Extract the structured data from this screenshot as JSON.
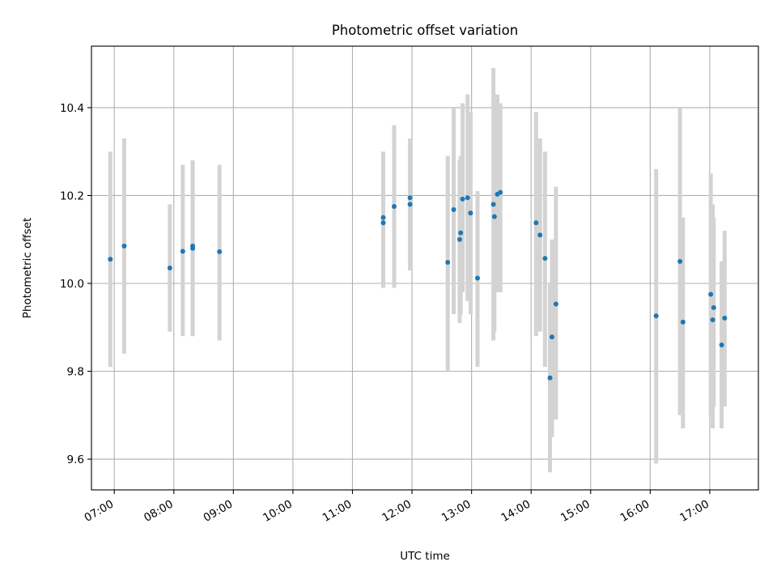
{
  "chart_data": {
    "type": "scatter",
    "title": "Photometric offset variation",
    "xlabel": "UTC time",
    "ylabel": "Photometric offset",
    "x_unit": "UTC time of day",
    "xlim": [
      "06:37",
      "17:49"
    ],
    "ylim": [
      9.53,
      10.54
    ],
    "x_ticks": [
      "07:00",
      "08:00",
      "09:00",
      "10:00",
      "11:00",
      "12:00",
      "13:00",
      "14:00",
      "15:00",
      "16:00",
      "17:00"
    ],
    "y_ticks": [
      "9.6",
      "9.8",
      "10.0",
      "10.2",
      "10.4"
    ],
    "grid": true,
    "colors": {
      "marker": "#1f77b4",
      "errorbar": "#d3d3d3",
      "grid": "#b0b0b0"
    },
    "points": [
      {
        "x": "06:56",
        "y": 10.055,
        "ylow": 9.81,
        "yhigh": 10.3
      },
      {
        "x": "07:10",
        "y": 10.085,
        "ylow": 9.84,
        "yhigh": 10.33
      },
      {
        "x": "07:56",
        "y": 10.035,
        "ylow": 9.89,
        "yhigh": 10.18
      },
      {
        "x": "08:09",
        "y": 10.073,
        "ylow": 9.88,
        "yhigh": 10.27
      },
      {
        "x": "08:19",
        "y": 10.08,
        "ylow": 9.88,
        "yhigh": 10.28
      },
      {
        "x": "08:19",
        "y": 10.085,
        "ylow": 9.88,
        "yhigh": 10.28
      },
      {
        "x": "08:46",
        "y": 10.072,
        "ylow": 9.87,
        "yhigh": 10.27
      },
      {
        "x": "11:31",
        "y": 10.15,
        "ylow": 9.99,
        "yhigh": 10.3
      },
      {
        "x": "11:31",
        "y": 10.138,
        "ylow": 9.99,
        "yhigh": 10.29
      },
      {
        "x": "11:42",
        "y": 10.175,
        "ylow": 9.99,
        "yhigh": 10.36
      },
      {
        "x": "11:58",
        "y": 10.195,
        "ylow": 10.03,
        "yhigh": 10.33
      },
      {
        "x": "11:58",
        "y": 10.18,
        "ylow": 10.03,
        "yhigh": 10.33
      },
      {
        "x": "12:36",
        "y": 10.048,
        "ylow": 9.8,
        "yhigh": 10.29
      },
      {
        "x": "12:42",
        "y": 10.168,
        "ylow": 9.93,
        "yhigh": 10.4
      },
      {
        "x": "12:48",
        "y": 10.1,
        "ylow": 9.91,
        "yhigh": 10.28
      },
      {
        "x": "12:49",
        "y": 10.115,
        "ylow": 9.93,
        "yhigh": 10.29
      },
      {
        "x": "12:51",
        "y": 10.192,
        "ylow": 9.98,
        "yhigh": 10.41
      },
      {
        "x": "12:56",
        "y": 10.195,
        "ylow": 9.96,
        "yhigh": 10.43
      },
      {
        "x": "12:59",
        "y": 10.16,
        "ylow": 9.93,
        "yhigh": 10.39
      },
      {
        "x": "13:06",
        "y": 10.012,
        "ylow": 9.81,
        "yhigh": 10.21
      },
      {
        "x": "13:22",
        "y": 10.18,
        "ylow": 9.87,
        "yhigh": 10.49
      },
      {
        "x": "13:23",
        "y": 10.152,
        "ylow": 9.89,
        "yhigh": 10.42
      },
      {
        "x": "13:26",
        "y": 10.203,
        "ylow": 9.98,
        "yhigh": 10.43
      },
      {
        "x": "13:29",
        "y": 10.207,
        "ylow": 9.98,
        "yhigh": 10.41
      },
      {
        "x": "14:05",
        "y": 10.138,
        "ylow": 9.88,
        "yhigh": 10.39
      },
      {
        "x": "14:09",
        "y": 10.11,
        "ylow": 9.89,
        "yhigh": 10.33
      },
      {
        "x": "14:14",
        "y": 10.057,
        "ylow": 9.81,
        "yhigh": 10.3
      },
      {
        "x": "14:19",
        "y": 9.785,
        "ylow": 9.57,
        "yhigh": 10.0
      },
      {
        "x": "14:21",
        "y": 9.878,
        "ylow": 9.65,
        "yhigh": 10.1
      },
      {
        "x": "14:25",
        "y": 9.953,
        "ylow": 9.69,
        "yhigh": 10.22
      },
      {
        "x": "16:06",
        "y": 9.926,
        "ylow": 9.59,
        "yhigh": 10.26
      },
      {
        "x": "16:30",
        "y": 10.05,
        "ylow": 9.7,
        "yhigh": 10.4
      },
      {
        "x": "16:33",
        "y": 9.912,
        "ylow": 9.67,
        "yhigh": 10.15
      },
      {
        "x": "17:01",
        "y": 9.975,
        "ylow": 9.7,
        "yhigh": 10.25
      },
      {
        "x": "17:03",
        "y": 9.917,
        "ylow": 9.67,
        "yhigh": 10.18
      },
      {
        "x": "17:04",
        "y": 9.945,
        "ylow": 9.72,
        "yhigh": 10.15
      },
      {
        "x": "17:12",
        "y": 9.86,
        "ylow": 9.67,
        "yhigh": 10.05
      },
      {
        "x": "17:15",
        "y": 9.921,
        "ylow": 9.72,
        "yhigh": 10.12
      }
    ]
  }
}
